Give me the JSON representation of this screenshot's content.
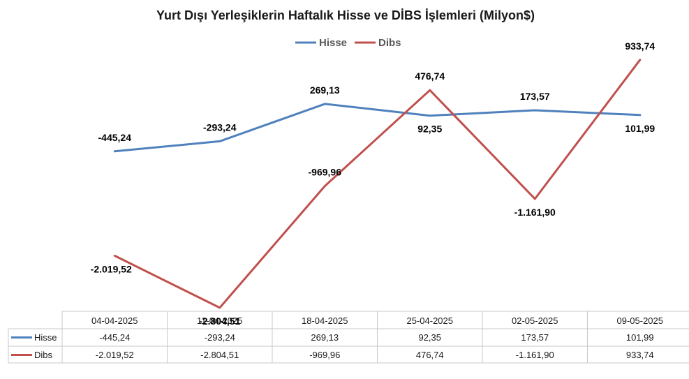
{
  "chart_data": {
    "type": "line",
    "title": "Yurt Dışı Yerleşiklerin Haftalık Hisse ve DİBS İşlemleri (Milyon$)",
    "categories": [
      "04-04-2025",
      "11-04-2025",
      "18-04-2025",
      "25-04-2025",
      "02-05-2025",
      "09-05-2025"
    ],
    "series": [
      {
        "name": "Hisse",
        "color": "#4f81bd",
        "values": [
          -445.24,
          -293.24,
          269.13,
          92.35,
          173.57,
          101.99
        ],
        "labels": [
          "-445,24",
          "-293,24",
          "269,13",
          "92,35",
          "173,57",
          "101,99"
        ]
      },
      {
        "name": "Dibs",
        "color": "#c0504d",
        "values": [
          -2019.52,
          -2804.51,
          -969.96,
          476.74,
          -1161.9,
          933.74
        ],
        "labels": [
          "-2.019,52",
          "-2.804,51",
          "-969,96",
          "476,74",
          "-1.161,90",
          "933,74"
        ]
      }
    ],
    "ylim": [
      -2900,
      1100
    ],
    "grid": false,
    "legend": "top-center",
    "data_table": true
  }
}
